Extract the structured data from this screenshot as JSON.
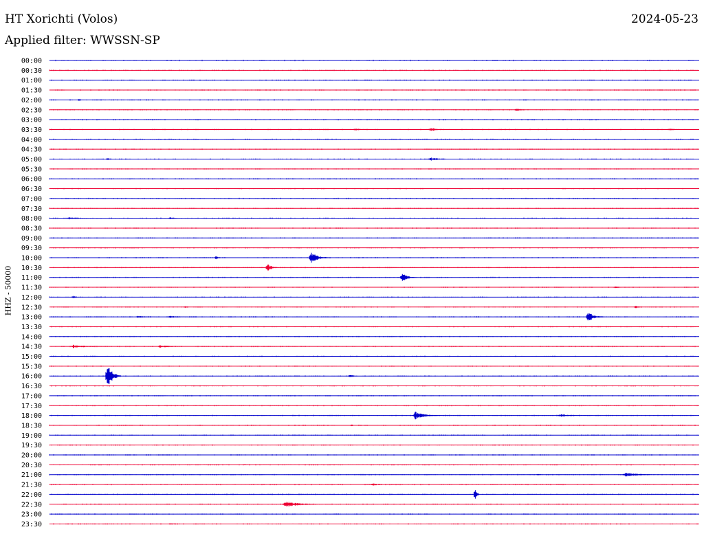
{
  "header": {
    "station": "HT Xorichti (Volos)",
    "date": "2024-05-23",
    "filter": "Applied filter: WWSSN-SP"
  },
  "chart_data": {
    "type": "line",
    "title": "HT Xorichti (Volos)",
    "subtitle": "Applied filter: WWSSN-SP",
    "ylabel": "HHZ - 50000",
    "rows": [
      "00:00",
      "00:30",
      "01:00",
      "01:30",
      "02:00",
      "02:30",
      "03:00",
      "03:30",
      "04:00",
      "04:30",
      "05:00",
      "05:30",
      "06:00",
      "06:30",
      "07:00",
      "07:30",
      "08:00",
      "08:30",
      "09:00",
      "09:30",
      "10:00",
      "10:30",
      "11:00",
      "11:30",
      "12:00",
      "12:30",
      "13:00",
      "13:30",
      "14:00",
      "14:30",
      "15:00",
      "15:30",
      "16:00",
      "16:30",
      "17:00",
      "17:30",
      "18:00",
      "18:30",
      "19:00",
      "19:30",
      "20:00",
      "20:30",
      "21:00",
      "21:30",
      "22:00",
      "22:30",
      "23:00",
      "23:30"
    ],
    "row_duration_min": 30,
    "colors": [
      "#0000cc",
      "#ee0033"
    ],
    "events": [
      {
        "row": "02:00",
        "minute": 1.3,
        "amplitude": 3,
        "duration_min": 0.4
      },
      {
        "row": "02:30",
        "minute": 21.5,
        "amplitude": 4,
        "duration_min": 0.5
      },
      {
        "row": "03:30",
        "minute": 17.5,
        "amplitude": 3,
        "duration_min": 1.2
      },
      {
        "row": "03:30",
        "minute": 14.0,
        "amplitude": 2,
        "duration_min": 1.2
      },
      {
        "row": "03:30",
        "minute": 28.5,
        "amplitude": 2,
        "duration_min": 1.2
      },
      {
        "row": "05:00",
        "minute": 17.5,
        "amplitude": 3,
        "duration_min": 1.4
      },
      {
        "row": "05:00",
        "minute": 2.6,
        "amplitude": 3,
        "duration_min": 0.5
      },
      {
        "row": "08:00",
        "minute": 5.5,
        "amplitude": 3,
        "duration_min": 0.6
      },
      {
        "row": "08:00",
        "minute": 0.8,
        "amplitude": 2,
        "duration_min": 1.6
      },
      {
        "row": "10:00",
        "minute": 12.0,
        "amplitude": 11,
        "duration_min": 0.9
      },
      {
        "row": "10:00",
        "minute": 7.6,
        "amplitude": 4,
        "duration_min": 0.5
      },
      {
        "row": "10:30",
        "minute": 10.0,
        "amplitude": 8,
        "duration_min": 0.6
      },
      {
        "row": "11:00",
        "minute": 16.2,
        "amplitude": 9,
        "duration_min": 0.7
      },
      {
        "row": "11:30",
        "minute": 26.0,
        "amplitude": 2,
        "duration_min": 1.0
      },
      {
        "row": "12:00",
        "minute": 1.0,
        "amplitude": 3,
        "duration_min": 0.5
      },
      {
        "row": "12:30",
        "minute": 27.0,
        "amplitude": 4,
        "duration_min": 0.4
      },
      {
        "row": "12:30",
        "minute": 6.2,
        "amplitude": 3,
        "duration_min": 0.3
      },
      {
        "row": "13:00",
        "minute": 24.8,
        "amplitude": 10,
        "duration_min": 0.8
      },
      {
        "row": "13:00",
        "minute": 4.0,
        "amplitude": 2,
        "duration_min": 1.2
      },
      {
        "row": "13:00",
        "minute": 5.5,
        "amplitude": 2,
        "duration_min": 1.3
      },
      {
        "row": "14:30",
        "minute": 1.0,
        "amplitude": 3,
        "duration_min": 1.8
      },
      {
        "row": "14:30",
        "minute": 5.0,
        "amplitude": 2,
        "duration_min": 2.0
      },
      {
        "row": "15:00",
        "minute": 28.5,
        "amplitude": 3,
        "duration_min": 0.3
      },
      {
        "row": "16:00",
        "minute": 2.6,
        "amplitude": 24,
        "duration_min": 0.7
      },
      {
        "row": "16:00",
        "minute": 13.8,
        "amplitude": 3,
        "duration_min": 0.6
      },
      {
        "row": "18:00",
        "minute": 16.8,
        "amplitude": 7,
        "duration_min": 1.4
      },
      {
        "row": "18:00",
        "minute": 23.5,
        "amplitude": 2,
        "duration_min": 2.0
      },
      {
        "row": "18:30",
        "minute": 13.9,
        "amplitude": 4,
        "duration_min": 0.2
      },
      {
        "row": "20:30",
        "minute": 9.0,
        "amplitude": 3,
        "duration_min": 0.2
      },
      {
        "row": "21:00",
        "minute": 26.5,
        "amplitude": 4,
        "duration_min": 1.8
      },
      {
        "row": "21:00",
        "minute": 22.5,
        "amplitude": 3,
        "duration_min": 0.3
      },
      {
        "row": "21:30",
        "minute": 14.8,
        "amplitude": 2,
        "duration_min": 1.5
      },
      {
        "row": "22:00",
        "minute": 19.6,
        "amplitude": 20,
        "duration_min": 0.25
      },
      {
        "row": "22:30",
        "minute": 10.8,
        "amplitude": 5,
        "duration_min": 2.0
      },
      {
        "row": "23:30",
        "minute": 5.5,
        "amplitude": 2,
        "duration_min": 0.7
      }
    ]
  }
}
